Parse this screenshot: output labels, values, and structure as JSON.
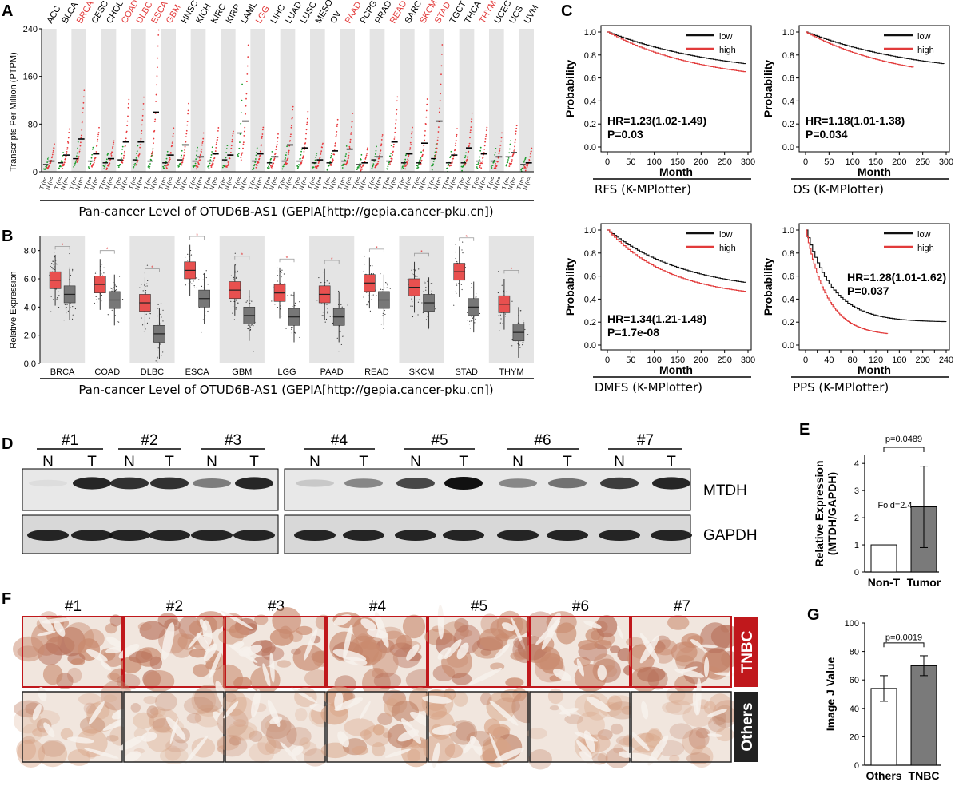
{
  "panels": {
    "A": {
      "letter": "A",
      "ylabel": "Transcripts Per Million (PTPM)",
      "yticks": [
        "0",
        "80",
        "160",
        "240"
      ],
      "ylim": [
        0,
        240
      ],
      "caption": "Pan-cancer Level of OTUD6B-AS1 (GEPIA[http://gepia.cancer-pku.cn])",
      "cancers": [
        {
          "name": "ACC",
          "highlight": false
        },
        {
          "name": "BLCA",
          "highlight": false
        },
        {
          "name": "BRCA",
          "highlight": true
        },
        {
          "name": "CESC",
          "highlight": false
        },
        {
          "name": "CHOL",
          "highlight": false
        },
        {
          "name": "COAD",
          "highlight": true
        },
        {
          "name": "DLBC",
          "highlight": true
        },
        {
          "name": "ESCA",
          "highlight": true
        },
        {
          "name": "GBM",
          "highlight": true
        },
        {
          "name": "HNSC",
          "highlight": false
        },
        {
          "name": "KICH",
          "highlight": false
        },
        {
          "name": "KIRC",
          "highlight": false
        },
        {
          "name": "KIRP",
          "highlight": false
        },
        {
          "name": "LAML",
          "highlight": false
        },
        {
          "name": "LGG",
          "highlight": true
        },
        {
          "name": "LIHC",
          "highlight": false
        },
        {
          "name": "LUAD",
          "highlight": false
        },
        {
          "name": "LUSC",
          "highlight": false
        },
        {
          "name": "MESO",
          "highlight": false
        },
        {
          "name": "OV",
          "highlight": false
        },
        {
          "name": "PAAD",
          "highlight": true
        },
        {
          "name": "PCPG",
          "highlight": false
        },
        {
          "name": "PRAD",
          "highlight": false
        },
        {
          "name": "READ",
          "highlight": true
        },
        {
          "name": "SARC",
          "highlight": false
        },
        {
          "name": "SKCM",
          "highlight": true
        },
        {
          "name": "STAD",
          "highlight": true
        },
        {
          "name": "TGCT",
          "highlight": false
        },
        {
          "name": "THCA",
          "highlight": false
        },
        {
          "name": "THYM",
          "highlight": true
        },
        {
          "name": "UCEC",
          "highlight": false
        },
        {
          "name": "UCS",
          "highlight": false
        },
        {
          "name": "UVM",
          "highlight": false
        }
      ],
      "tumor_medians": [
        18,
        28,
        55,
        30,
        22,
        50,
        50,
        100,
        28,
        45,
        25,
        30,
        28,
        85,
        30,
        25,
        45,
        40,
        20,
        35,
        38,
        15,
        25,
        50,
        30,
        48,
        85,
        28,
        40,
        30,
        25,
        32,
        15
      ],
      "normal_medians": [
        12,
        15,
        22,
        18,
        15,
        20,
        20,
        18,
        15,
        20,
        18,
        18,
        20,
        65,
        18,
        15,
        18,
        18,
        15,
        15,
        18,
        12,
        20,
        18,
        15,
        15,
        22,
        15,
        15,
        18,
        18,
        25,
        12
      ]
    },
    "B": {
      "letter": "B",
      "ylabel": "Relative Expression",
      "yticks": [
        "0.0",
        "2.0",
        "4.0",
        "6.0",
        "8.0"
      ],
      "ylim": [
        0,
        9
      ],
      "caption": "Pan-cancer Level of OTUD6B-AS1 (GEPIA[http://gepia.cancer-pku.cn])",
      "cancers": [
        "BRCA",
        "COAD",
        "DLBC",
        "ESCA",
        "GBM",
        "LGG",
        "PAAD",
        "READ",
        "SKCM",
        "STAD",
        "THYM"
      ],
      "tumor_median": [
        5.9,
        5.6,
        4.3,
        6.6,
        5.2,
        5.0,
        4.9,
        5.7,
        5.4,
        6.5,
        4.2
      ],
      "normal_median": [
        4.9,
        4.5,
        2.1,
        4.6,
        3.4,
        3.3,
        3.3,
        4.5,
        4.3,
        4.0,
        2.2
      ]
    },
    "C": {
      "letter": "C",
      "plots": [
        {
          "caption": "RFS (K-MPlotter)",
          "hr": "HR=1.23(1.02-1.49)",
          "p": "P=0.03",
          "xmax": 300,
          "xticks": [
            "0",
            "50",
            "100",
            "150",
            "200",
            "250",
            "300"
          ],
          "legend_pos": "top-right",
          "stats_pos": "bottom-left"
        },
        {
          "caption": "OS (K-MPlotter)",
          "hr": "HR=1.18(1.01-1.38)",
          "p": "P=0.034",
          "xmax": 300,
          "xticks": [
            "0",
            "50",
            "100",
            "150",
            "200",
            "250",
            "300"
          ],
          "legend_pos": "top-right",
          "stats_pos": "bottom-left"
        },
        {
          "caption": "DMFS (K-MPlotter)",
          "hr": "HR=1.34(1.21-1.48)",
          "p": "P=1.7e-08",
          "xmax": 300,
          "xticks": [
            "0",
            "50",
            "100",
            "150",
            "200",
            "250",
            "300"
          ],
          "legend_pos": "top-right",
          "stats_pos": "bottom-left"
        },
        {
          "caption": "PPS (K-MPlotter)",
          "hr": "HR=1.28(1.01-1.62)",
          "p": "P=0.037",
          "xmax": 240,
          "xticks": [
            "0",
            "20",
            "40",
            "60",
            "80",
            "100",
            "120",
            "140",
            "160",
            "180",
            "200",
            "220",
            "240"
          ],
          "legend_pos": "top-right",
          "stats_pos": "middle-right"
        }
      ],
      "ylabel": "Probability",
      "xlabel": "Month",
      "yticks": [
        "0.0",
        "0.2",
        "0.4",
        "0.6",
        "0.8",
        "1.0"
      ],
      "legend": {
        "low": "low",
        "high": "high"
      }
    },
    "D": {
      "letter": "D",
      "samples": [
        "#1",
        "#2",
        "#3",
        "#4",
        "#5",
        "#6",
        "#7"
      ],
      "lanes": [
        "N",
        "T"
      ],
      "bands": [
        "MTDH",
        "GAPDH"
      ]
    },
    "E": {
      "letter": "E",
      "ylabel_line1": "Relative Expression",
      "ylabel_line2": "(MTDH/GAPDH)",
      "yticks": [
        "0",
        "1",
        "2",
        "3",
        "4"
      ],
      "categories": [
        "Non-T",
        "Tumor"
      ],
      "values": [
        1.0,
        2.4
      ],
      "error": [
        0,
        1.5
      ],
      "p": "p=0.0489",
      "fold": "Fold=2.4"
    },
    "F": {
      "letter": "F",
      "samples": [
        "#1",
        "#2",
        "#3",
        "#4",
        "#5",
        "#6",
        "#7"
      ],
      "rows": [
        "TNBC",
        "Others"
      ]
    },
    "G": {
      "letter": "G",
      "ylabel": "Image J Value",
      "yticks": [
        "0",
        "20",
        "40",
        "60",
        "80",
        "100"
      ],
      "categories": [
        "Others",
        "TNBC"
      ],
      "values": [
        54,
        70
      ],
      "error": [
        9,
        7
      ],
      "p": "p=0.0019"
    }
  },
  "chart_data": [
    {
      "type": "scatter",
      "title": "",
      "ylabel": "Transcripts Per Million (PTPM)",
      "ylim": [
        0,
        240
      ],
      "categories": [
        "ACC",
        "BLCA",
        "BRCA",
        "CESC",
        "CHOL",
        "COAD",
        "DLBC",
        "ESCA",
        "GBM",
        "HNSC",
        "KICH",
        "KIRC",
        "KIRP",
        "LAML",
        "LGG",
        "LIHC",
        "LUAD",
        "LUSC",
        "MESO",
        "OV",
        "PAAD",
        "PCPG",
        "PRAD",
        "READ",
        "SARC",
        "SKCM",
        "STAD",
        "TGCT",
        "THCA",
        "THYM",
        "UCEC",
        "UCS",
        "UVM"
      ]
    },
    {
      "type": "bar",
      "ylabel": "Relative Expression",
      "ylim": [
        0,
        9
      ],
      "categories": [
        "BRCA",
        "COAD",
        "DLBC",
        "ESCA",
        "GBM",
        "LGG",
        "PAAD",
        "READ",
        "SKCM",
        "STAD",
        "THYM"
      ],
      "series": [
        {
          "values": [
            5.9,
            5.6,
            4.3,
            6.6,
            5.2,
            5.0,
            4.9,
            5.7,
            5.4,
            6.5,
            4.2
          ]
        },
        {
          "values": [
            4.9,
            4.5,
            2.1,
            4.6,
            3.4,
            3.3,
            3.3,
            4.5,
            4.3,
            4.0,
            2.2
          ]
        }
      ]
    },
    {
      "type": "line",
      "xlabel": "Month",
      "ylabel": "Probability",
      "ylim": [
        0,
        1
      ]
    },
    {
      "type": "bar",
      "ylabel": "Relative Expression (MTDH/GAPDH)",
      "ylim": [
        0,
        4
      ],
      "categories": [
        "Non-T",
        "Tumor"
      ],
      "values": [
        1.0,
        2.4
      ]
    },
    {
      "type": "bar",
      "ylabel": "Image J Value",
      "ylim": [
        0,
        100
      ],
      "categories": [
        "Others",
        "TNBC"
      ],
      "values": [
        54,
        70
      ]
    }
  ]
}
